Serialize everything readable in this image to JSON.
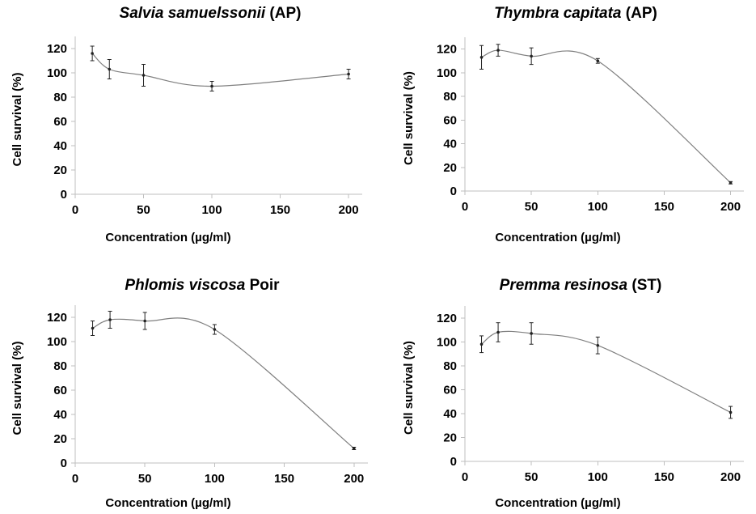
{
  "chart_data": [
    {
      "type": "line",
      "title_italic": "Salvia samuelssonii",
      "title_rest": " (AP)",
      "xlabel": "Concentration (µg/ml)",
      "ylabel": "Cell survival (%)",
      "xlim": [
        0,
        210
      ],
      "ylim": [
        0,
        130
      ],
      "xticks": [
        0,
        50,
        100,
        150,
        200
      ],
      "yticks": [
        0,
        20,
        40,
        60,
        80,
        100,
        120
      ],
      "x": [
        12.5,
        25,
        50,
        100,
        200
      ],
      "y": [
        116,
        103,
        98,
        89,
        99
      ],
      "err": [
        6,
        8,
        9,
        4,
        4
      ]
    },
    {
      "type": "line",
      "title_italic": "Thymbra capitata",
      "title_rest": " (AP)",
      "xlabel": "Concentration (µg/ml)",
      "ylabel": "Cell survival (%)",
      "xlim": [
        0,
        210
      ],
      "ylim": [
        0,
        130
      ],
      "xticks": [
        0,
        50,
        100,
        150,
        200
      ],
      "yticks": [
        0,
        20,
        40,
        60,
        80,
        100,
        120
      ],
      "x": [
        12.5,
        25,
        50,
        100,
        200
      ],
      "y": [
        113,
        119,
        114,
        110,
        7
      ],
      "err": [
        10,
        5,
        7,
        2,
        1
      ]
    },
    {
      "type": "line",
      "title_italic": "Phlomis viscosa",
      "title_rest": " Poir",
      "xlabel": "Concentration (µg/ml)",
      "ylabel": "Cell survival (%)",
      "xlim": [
        0,
        210
      ],
      "ylim": [
        0,
        130
      ],
      "xticks": [
        0,
        50,
        100,
        150,
        200
      ],
      "yticks": [
        0,
        20,
        40,
        60,
        80,
        100,
        120
      ],
      "x": [
        12.5,
        25,
        50,
        100,
        200
      ],
      "y": [
        111,
        118,
        117,
        110,
        12
      ],
      "err": [
        6,
        7,
        7,
        4,
        1
      ]
    },
    {
      "type": "line",
      "title_italic": "Premma resinosa",
      "title_rest": " (ST)",
      "xlabel": "Concentration (µg/ml)",
      "ylabel": "Cell survival (%)",
      "xlim": [
        0,
        210
      ],
      "ylim": [
        0,
        130
      ],
      "xticks": [
        0,
        50,
        100,
        150,
        200
      ],
      "yticks": [
        0,
        20,
        40,
        60,
        80,
        100,
        120
      ],
      "x": [
        12.5,
        25,
        50,
        100,
        200
      ],
      "y": [
        98,
        108,
        107,
        97,
        41
      ],
      "err": [
        7,
        8,
        9,
        7,
        5
      ]
    }
  ]
}
